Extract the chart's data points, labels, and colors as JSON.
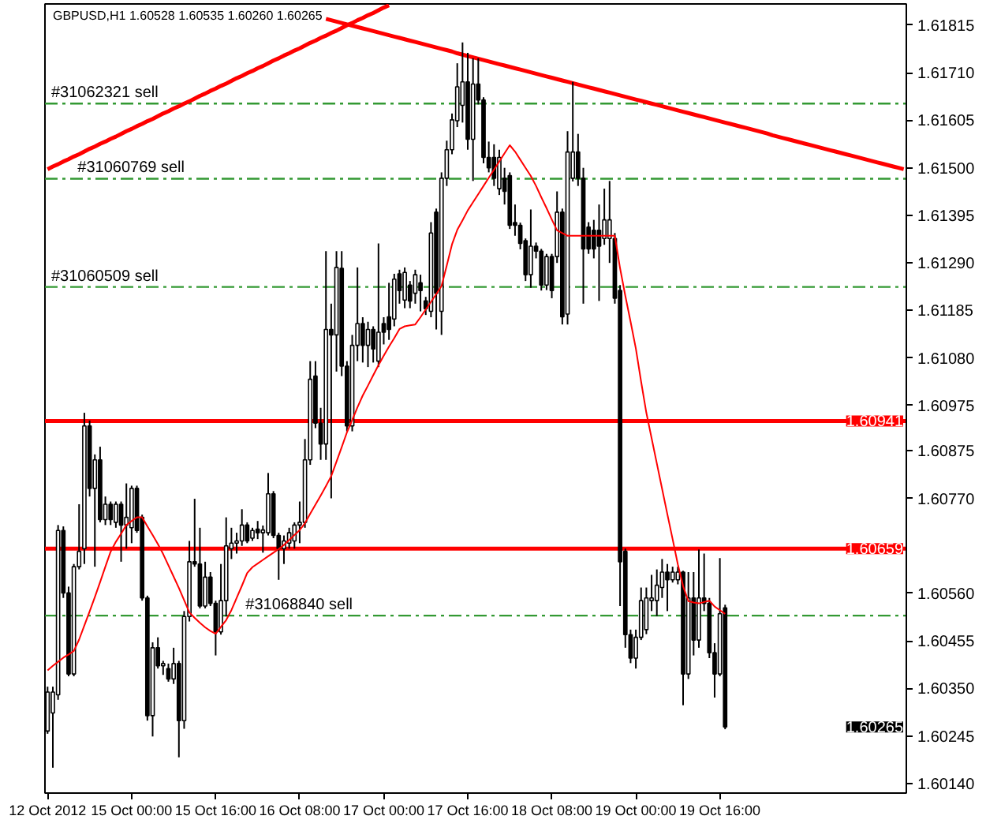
{
  "chart_data": {
    "type": "candlestick",
    "title": "GBPUSD,H1 1.60528 1.60535 1.60260 1.60265",
    "categories": [
      "12 Oct 2012",
      null,
      null,
      null,
      null,
      null,
      null,
      null,
      null,
      null,
      null,
      null,
      null,
      null,
      null,
      null,
      "15 Oct 00:00",
      null,
      null,
      null,
      null,
      null,
      null,
      null,
      null,
      null,
      null,
      null,
      null,
      null,
      null,
      null,
      "15 Oct 16:00",
      null,
      null,
      null,
      null,
      null,
      null,
      null,
      null,
      null,
      null,
      null,
      null,
      null,
      null,
      null,
      "16 Oct 08:00",
      null,
      null,
      null,
      null,
      null,
      null,
      null,
      null,
      null,
      null,
      null,
      null,
      null,
      null,
      null,
      "17 Oct 00:00",
      null,
      null,
      null,
      null,
      null,
      null,
      null,
      null,
      null,
      null,
      null,
      null,
      null,
      null,
      null,
      "17 Oct 16:00",
      null,
      null,
      null,
      null,
      null,
      null,
      null,
      null,
      null,
      null,
      null,
      null,
      null,
      null,
      null,
      "18 Oct 08:00",
      null,
      null,
      null,
      null,
      null,
      null,
      null,
      null,
      null,
      null,
      null,
      null,
      null,
      null,
      null,
      "19 Oct 00:00",
      null,
      null,
      null,
      null,
      null,
      null,
      null,
      null,
      null,
      null,
      null,
      null,
      null,
      null,
      null,
      "19 Oct 16:00",
      null,
      null,
      null,
      null,
      null,
      null,
      null,
      null,
      null,
      null,
      null,
      null,
      null,
      null,
      null,
      null,
      null,
      null,
      null,
      null,
      null,
      null,
      null,
      null,
      null,
      null,
      null,
      null,
      null,
      null,
      null,
      null,
      null,
      null,
      null
    ],
    "ohlc": [
      [
        1.60256,
        1.60354,
        1.6025,
        1.60342
      ],
      [
        1.60296,
        1.60354,
        1.60175,
        1.60342
      ],
      [
        1.60336,
        1.60711,
        1.60325,
        1.60699
      ],
      [
        1.60699,
        1.60708,
        1.6055,
        1.60561
      ],
      [
        1.60561,
        1.60575,
        1.60377,
        1.60382
      ],
      [
        1.60382,
        1.60625,
        1.60377,
        1.60619
      ],
      [
        1.60619,
        1.60757,
        1.60613,
        1.60653
      ],
      [
        1.60659,
        1.60959,
        1.60625,
        1.6093
      ],
      [
        1.6093,
        1.60942,
        1.60774,
        1.60792
      ],
      [
        1.60792,
        1.60867,
        1.60619,
        1.60855
      ],
      [
        1.60855,
        1.60884,
        1.60717,
        1.60723
      ],
      [
        1.60723,
        1.60774,
        1.60711,
        1.60757
      ],
      [
        1.60757,
        1.60763,
        1.60711,
        1.60723
      ],
      [
        1.60717,
        1.60763,
        1.60705,
        1.60757
      ],
      [
        1.60757,
        1.60763,
        1.6063,
        1.60711
      ],
      [
        1.60711,
        1.60803,
        1.60659,
        1.60728
      ],
      [
        1.60705,
        1.60798,
        1.60671,
        1.60792
      ],
      [
        1.60792,
        1.60798,
        1.60694,
        1.60699
      ],
      [
        1.60728,
        1.60734,
        1.60544,
        1.6055
      ],
      [
        1.6055,
        1.60555,
        1.60279,
        1.6029
      ],
      [
        1.6029,
        1.60452,
        1.60244,
        1.6044
      ],
      [
        1.6044,
        1.60463,
        1.60394,
        1.604
      ],
      [
        1.604,
        1.60411,
        1.6038,
        1.60405
      ],
      [
        1.60394,
        1.60405,
        1.60365,
        1.60371
      ],
      [
        1.60371,
        1.6044,
        1.6036,
        1.60405
      ],
      [
        1.60405,
        1.60411,
        1.60198,
        1.60279
      ],
      [
        1.60279,
        1.60521,
        1.60261,
        1.60509
      ],
      [
        1.60509,
        1.60676,
        1.60498,
        1.6063
      ],
      [
        1.6063,
        1.60769,
        1.60619,
        1.60625
      ],
      [
        1.60625,
        1.60705,
        1.60527,
        1.60532
      ],
      [
        1.60532,
        1.6063,
        1.60527,
        1.60596
      ],
      [
        1.60596,
        1.60607,
        1.60532,
        1.60538
      ],
      [
        1.60538,
        1.60544,
        1.60423,
        1.60475
      ],
      [
        1.60475,
        1.60625,
        1.60469,
        1.60544
      ],
      [
        1.60544,
        1.60728,
        1.60509,
        1.60665
      ],
      [
        1.60659,
        1.60705,
        1.60636,
        1.60671
      ],
      [
        1.60671,
        1.60694,
        1.60648,
        1.60676
      ],
      [
        1.60676,
        1.60746,
        1.60665,
        1.60711
      ],
      [
        1.60711,
        1.60717,
        1.60671,
        1.60676
      ],
      [
        1.60682,
        1.60705,
        1.60676,
        1.60699
      ],
      [
        1.60702,
        1.6072,
        1.6068,
        1.60694
      ],
      [
        1.60694,
        1.6071,
        1.6065,
        1.607
      ],
      [
        1.60694,
        1.60826,
        1.60688,
        1.6078
      ],
      [
        1.6078,
        1.60786,
        1.60682,
        1.60688
      ],
      [
        1.60688,
        1.60694,
        1.6059,
        1.60659
      ],
      [
        1.60659,
        1.60688,
        1.60625,
        1.60676
      ],
      [
        1.60671,
        1.60705,
        1.60659,
        1.60694
      ],
      [
        1.60676,
        1.60717,
        1.60659,
        1.60711
      ],
      [
        1.60711,
        1.60763,
        1.60671,
        1.60717
      ],
      [
        1.60717,
        1.60901,
        1.60705,
        1.60855
      ],
      [
        1.60855,
        1.61073,
        1.60844,
        1.61033
      ],
      [
        1.6104,
        1.61073,
        1.60925,
        1.60936
      ],
      [
        1.60936,
        1.6097,
        1.60855,
        1.6089
      ],
      [
        1.6089,
        1.61316,
        1.60855,
        1.61143
      ],
      [
        1.61143,
        1.612,
        1.6077,
        1.61131
      ],
      [
        1.61131,
        1.61316,
        1.6105,
        1.6128
      ],
      [
        1.61278,
        1.61316,
        1.6104,
        1.61062
      ],
      [
        1.61062,
        1.61073,
        1.60918,
        1.6093
      ],
      [
        1.6093,
        1.61131,
        1.60918,
        1.61108
      ],
      [
        1.61108,
        1.6128,
        1.61073,
        1.61156
      ],
      [
        1.61156,
        1.6117,
        1.6107,
        1.61108
      ],
      [
        1.61108,
        1.6116,
        1.6106,
        1.61143
      ],
      [
        1.61143,
        1.6115,
        1.6107,
        1.611
      ],
      [
        1.61073,
        1.61333,
        1.6106,
        1.61137
      ],
      [
        1.61156,
        1.6117,
        1.6111,
        1.61137
      ],
      [
        1.61171,
        1.61246,
        1.6112,
        1.61143
      ],
      [
        1.61166,
        1.61266,
        1.6115,
        1.61254
      ],
      [
        1.61266,
        1.61275,
        1.612,
        1.61229
      ],
      [
        1.61208,
        1.6128,
        1.6119,
        1.61269
      ],
      [
        1.61241,
        1.6125,
        1.6119,
        1.61206
      ],
      [
        1.61223,
        1.61275,
        1.612,
        1.61264
      ],
      [
        1.61246,
        1.61264,
        1.61183,
        1.61229
      ],
      [
        1.61206,
        1.61215,
        1.61175,
        1.61189
      ],
      [
        1.61183,
        1.6138,
        1.6117,
        1.61356
      ],
      [
        1.61402,
        1.6141,
        1.61143,
        1.61223
      ],
      [
        1.61183,
        1.6149,
        1.61131,
        1.61477
      ],
      [
        1.61477,
        1.6156,
        1.6146,
        1.6154
      ],
      [
        1.6154,
        1.6162,
        1.6153,
        1.61606
      ],
      [
        1.61604,
        1.61731,
        1.6159,
        1.61679
      ],
      [
        1.61638,
        1.61777,
        1.616,
        1.6169
      ],
      [
        1.6169,
        1.61754,
        1.6154,
        1.61563
      ],
      [
        1.61563,
        1.61742,
        1.61471,
        1.61685
      ],
      [
        1.61685,
        1.61742,
        1.6164,
        1.6165
      ],
      [
        1.6165,
        1.61656,
        1.6151,
        1.61523
      ],
      [
        1.61523,
        1.61558,
        1.6149,
        1.615
      ],
      [
        1.61523,
        1.61552,
        1.6146,
        1.61477
      ],
      [
        1.61454,
        1.6154,
        1.6144,
        1.61523
      ],
      [
        1.61477,
        1.615,
        1.61419,
        1.61448
      ],
      [
        1.61483,
        1.6149,
        1.61365,
        1.61373
      ],
      [
        1.61379,
        1.61419,
        1.6135,
        1.61373
      ],
      [
        1.61373,
        1.61379,
        1.6132,
        1.61333
      ],
      [
        1.61339,
        1.61344,
        1.6125,
        1.61264
      ],
      [
        1.61264,
        1.61408,
        1.61235,
        1.61327
      ],
      [
        1.61327,
        1.61335,
        1.613,
        1.61316
      ],
      [
        1.61316,
        1.61321,
        1.61229,
        1.61241
      ],
      [
        1.61241,
        1.6131,
        1.6123,
        1.61304
      ],
      [
        1.61304,
        1.6131,
        1.61212,
        1.61229
      ],
      [
        1.61304,
        1.61448,
        1.6129,
        1.61402
      ],
      [
        1.61402,
        1.6141,
        1.61154,
        1.61171
      ],
      [
        1.61177,
        1.61581,
        1.61154,
        1.61535
      ],
      [
        1.61477,
        1.6169,
        1.6147,
        1.61535
      ],
      [
        1.61535,
        1.61575,
        1.6146,
        1.61477
      ],
      [
        1.61477,
        1.615,
        1.612,
        1.61321
      ],
      [
        1.61369,
        1.6138,
        1.6131,
        1.61321
      ],
      [
        1.61362,
        1.61385,
        1.613,
        1.61321
      ],
      [
        1.61362,
        1.61419,
        1.61206,
        1.61327
      ],
      [
        1.61344,
        1.61454,
        1.6133,
        1.61385
      ],
      [
        1.61344,
        1.61471,
        1.6129,
        1.61385
      ],
      [
        1.61344,
        1.61356,
        1.612,
        1.61212
      ],
      [
        1.61229,
        1.61241,
        1.60532,
        1.6063
      ],
      [
        1.60653,
        1.60659,
        1.6044,
        1.60469
      ],
      [
        1.60469,
        1.6048,
        1.60406,
        1.60417
      ],
      [
        1.60417,
        1.6048,
        1.60394,
        1.60463
      ],
      [
        1.60463,
        1.60573,
        1.60457,
        1.60544
      ],
      [
        1.6048,
        1.60573,
        1.6047,
        1.6055
      ],
      [
        1.60544,
        1.60601,
        1.60521,
        1.6055
      ],
      [
        1.60544,
        1.60613,
        1.6051,
        1.60578
      ],
      [
        1.60573,
        1.60636,
        1.6055,
        1.60607
      ],
      [
        1.60607,
        1.60625,
        1.60521,
        1.6059
      ],
      [
        1.6059,
        1.60619,
        1.60584,
        1.60607
      ],
      [
        1.6059,
        1.60619,
        1.6058,
        1.60607
      ],
      [
        1.60607,
        1.6061,
        1.60313,
        1.60382
      ],
      [
        1.60382,
        1.60607,
        1.60371,
        1.6055
      ],
      [
        1.6055,
        1.60607,
        1.60423,
        1.60457
      ],
      [
        1.60457,
        1.60657,
        1.6044,
        1.6055
      ],
      [
        1.6055,
        1.60648,
        1.60521,
        1.60538
      ],
      [
        1.60538,
        1.6055,
        1.60417,
        1.60429
      ],
      [
        1.60429,
        1.6045,
        1.6033,
        1.60382
      ],
      [
        1.60382,
        1.60638,
        1.60377,
        1.60515
      ],
      [
        1.60528,
        1.60535,
        1.6026,
        1.60265
      ],
      null,
      null,
      null,
      null,
      null,
      null,
      null,
      null,
      null,
      null,
      null,
      null,
      null,
      null,
      null,
      null,
      null,
      null,
      null,
      null,
      null,
      null,
      null,
      null,
      null,
      null,
      null,
      null,
      null,
      null,
      null,
      null,
      null,
      null
    ],
    "series": [
      {
        "type": "line",
        "color": "#ff0000",
        "values": [
          1.6039,
          1.604,
          1.60409,
          1.60418,
          1.60425,
          1.60433,
          1.60458,
          1.60489,
          1.6052,
          1.60552,
          1.60585,
          1.60619,
          1.60652,
          1.60674,
          1.60692,
          1.60711,
          1.6072,
          1.60728,
          1.60728,
          1.60708,
          1.60689,
          1.60669,
          1.60647,
          1.60622,
          1.60597,
          1.60572,
          1.60545,
          1.60518,
          1.60506,
          1.60495,
          1.60485,
          1.60477,
          1.60471,
          1.60486,
          1.60501,
          1.60523,
          1.6055,
          1.60577,
          1.60605,
          1.60618,
          1.60626,
          1.60634,
          1.60642,
          1.6065,
          1.60658,
          1.60667,
          1.60678,
          1.60689,
          1.607,
          1.60715,
          1.60736,
          1.60756,
          1.60776,
          1.60797,
          1.60819,
          1.60851,
          1.60883,
          1.60916,
          1.60943,
          1.60971,
          1.60997,
          1.61019,
          1.61042,
          1.61064,
          1.61085,
          1.61105,
          1.61124,
          1.61144,
          1.6115,
          1.61152,
          1.61154,
          1.6117,
          1.61187,
          1.61204,
          1.61221,
          1.61239,
          1.61284,
          1.61331,
          1.61363,
          1.61384,
          1.61406,
          1.61424,
          1.61442,
          1.6146,
          1.61478,
          1.61496,
          1.61514,
          1.61532,
          1.6155,
          1.61536,
          1.61518,
          1.615,
          1.61482,
          1.6146,
          1.61435,
          1.61411,
          1.61386,
          1.61362,
          1.61356,
          1.6135,
          1.6135,
          1.6135,
          1.6135,
          1.6135,
          1.6135,
          1.6135,
          1.6135,
          1.6135,
          1.6135,
          1.61278,
          1.61217,
          1.6116,
          1.61101,
          1.61028,
          1.60959,
          1.60903,
          1.60847,
          1.60791,
          1.60735,
          1.6068,
          1.60624,
          1.60576,
          1.60543,
          1.6054,
          1.60538,
          1.60541,
          1.60544,
          1.60531,
          1.60523,
          1.60515,
          null,
          null,
          null,
          null,
          null,
          null,
          null,
          null,
          null,
          null,
          null,
          null,
          null,
          null,
          null,
          null,
          null,
          null,
          null,
          null,
          null,
          null,
          null,
          null,
          null,
          null,
          null,
          null,
          null,
          null,
          null,
          null,
          null,
          null
        ]
      },
      {
        "type": "line",
        "color": "#ff0000",
        "values": [
          1.61497,
          1.61503,
          1.61508,
          1.61514,
          1.61519,
          1.61525,
          1.6153,
          1.61536,
          1.61542,
          1.61547,
          1.61553,
          1.61558,
          1.61564,
          1.61569,
          1.61575,
          1.61581,
          1.61586,
          1.61592,
          1.61597,
          1.61603,
          1.61608,
          1.61614,
          1.6162,
          1.61625,
          1.61631,
          1.61636,
          1.61642,
          1.61647,
          1.61653,
          1.61659,
          1.61664,
          1.6167,
          1.61675,
          1.61681,
          1.61686,
          1.61692,
          1.61698,
          1.61703,
          1.61709,
          1.61714,
          1.6172,
          1.61725,
          1.61731,
          1.61737,
          1.61742,
          1.61748,
          1.61753,
          1.61759,
          1.61764,
          1.6177,
          1.61776,
          1.61781,
          1.61787,
          1.61792,
          1.61798,
          1.61803,
          1.61809,
          1.61815,
          1.6182,
          1.61826,
          1.61831,
          1.61837,
          1.61842,
          1.61848,
          1.61854,
          1.61859,
          null,
          null,
          null,
          null,
          null,
          null,
          null,
          null,
          null,
          null,
          null,
          null,
          null,
          null,
          null,
          null,
          null,
          null,
          null,
          null,
          null,
          null,
          null,
          null,
          null,
          null,
          null,
          null,
          null,
          null,
          null,
          null,
          null,
          null,
          null,
          null,
          null,
          null,
          null,
          null,
          null,
          null,
          null,
          null,
          null,
          null,
          null,
          null,
          null,
          null,
          null,
          null,
          null,
          null,
          null,
          null,
          null,
          null,
          null,
          null,
          null,
          null,
          null,
          null,
          null,
          null,
          null,
          null,
          null,
          null,
          null,
          null,
          null,
          null,
          null,
          null,
          null,
          null,
          null,
          null,
          null,
          null,
          null,
          null,
          null,
          null,
          null,
          null,
          null,
          null,
          null,
          null,
          null,
          null,
          null,
          null,
          null,
          null
        ]
      },
      {
        "type": "line",
        "color": "#ff0000",
        "values": [
          null,
          null,
          null,
          null,
          null,
          null,
          null,
          null,
          null,
          null,
          null,
          null,
          null,
          null,
          null,
          null,
          null,
          null,
          null,
          null,
          null,
          null,
          null,
          null,
          null,
          null,
          null,
          null,
          null,
          null,
          null,
          null,
          null,
          null,
          null,
          null,
          null,
          null,
          null,
          null,
          null,
          null,
          null,
          null,
          null,
          null,
          null,
          null,
          null,
          null,
          null,
          null,
          null,
          1.61829,
          1.61826,
          1.61823,
          1.6182,
          1.61817,
          1.61814,
          1.61811,
          1.61808,
          1.61805,
          1.61802,
          1.61799,
          1.61796,
          1.61793,
          1.6179,
          1.61787,
          1.61784,
          1.61781,
          1.61778,
          1.61775,
          1.61772,
          1.61769,
          1.61766,
          1.61763,
          1.6176,
          1.61757,
          1.61753,
          1.6175,
          1.61747,
          1.61744,
          1.61741,
          1.61738,
          1.61735,
          1.61732,
          1.61729,
          1.61726,
          1.61723,
          1.6172,
          1.61717,
          1.61714,
          1.61711,
          1.61708,
          1.61705,
          1.61702,
          1.61699,
          1.61696,
          1.61693,
          1.6169,
          1.61687,
          1.61684,
          1.61681,
          1.61678,
          1.61675,
          1.61672,
          1.61669,
          1.61666,
          1.61663,
          1.6166,
          1.61657,
          1.61654,
          1.61651,
          1.61648,
          1.61645,
          1.61642,
          1.61639,
          1.61636,
          1.61633,
          1.6163,
          1.61627,
          1.61624,
          1.61621,
          1.61618,
          1.61615,
          1.61612,
          1.61609,
          1.61606,
          1.61603,
          1.616,
          1.61597,
          1.61594,
          1.61591,
          1.61588,
          1.61585,
          1.61582,
          1.61579,
          1.61576,
          1.61572,
          1.61569,
          1.61566,
          1.61563,
          1.6156,
          1.61557,
          1.61554,
          1.61551,
          1.61548,
          1.61545,
          1.61542,
          1.61539,
          1.61536,
          1.61533,
          1.6153,
          1.61527,
          1.61524,
          1.61521,
          1.61518,
          1.61515,
          1.61512,
          1.61509,
          1.61506,
          1.61503,
          1.615,
          1.61497
        ]
      }
    ],
    "ylim": [
      1.60119,
      1.61862
    ],
    "yticks": [
      1.61815,
      {
        "value": 1.6171,
        "label": "1.61710"
      },
      {
        "value": 1.61605,
        "label": "1.61605"
      },
      {
        "value": 1.615,
        "label": "1.61500"
      },
      1.61395,
      {
        "value": 1.6129,
        "label": "1.61290"
      },
      1.61185,
      {
        "value": 1.6108,
        "label": "1.61080"
      },
      1.60975,
      1.60875,
      {
        "value": 1.6077,
        "label": "1.60770"
      },
      {
        "value": 1.6056,
        "label": "1.60560"
      },
      1.60455,
      {
        "value": 1.6035,
        "label": "1.60350"
      },
      1.60245,
      {
        "value": 1.6014,
        "label": "1.60140"
      }
    ],
    "ref_lines": [
      {
        "axis": "y",
        "value": 1.60941,
        "label": "1.60941",
        "color": "#ff0000",
        "line_style": "solid"
      },
      {
        "axis": "y",
        "value": 1.60659,
        "label": "1.60659",
        "color": "#ff0000",
        "line_style": "solid"
      },
      {
        "axis": "y",
        "value": 1.61642,
        "label": "#31062321 sell",
        "color": "#339933",
        "line_style": "dashed"
      },
      {
        "axis": "y",
        "value": 1.61476,
        "label": "#31060769 sell",
        "color": "#339933",
        "line_style": "dashed"
      },
      {
        "axis": "y",
        "value": 1.61237,
        "label": "#31060509 sell",
        "color": "#339933",
        "line_style": "dashed"
      },
      {
        "axis": "y",
        "value": 1.60511,
        "label": "#31068840 sell",
        "color": "#339933",
        "line_style": "dashed"
      }
    ],
    "annotations": [
      "1.60265"
    ],
    "grid": false
  }
}
